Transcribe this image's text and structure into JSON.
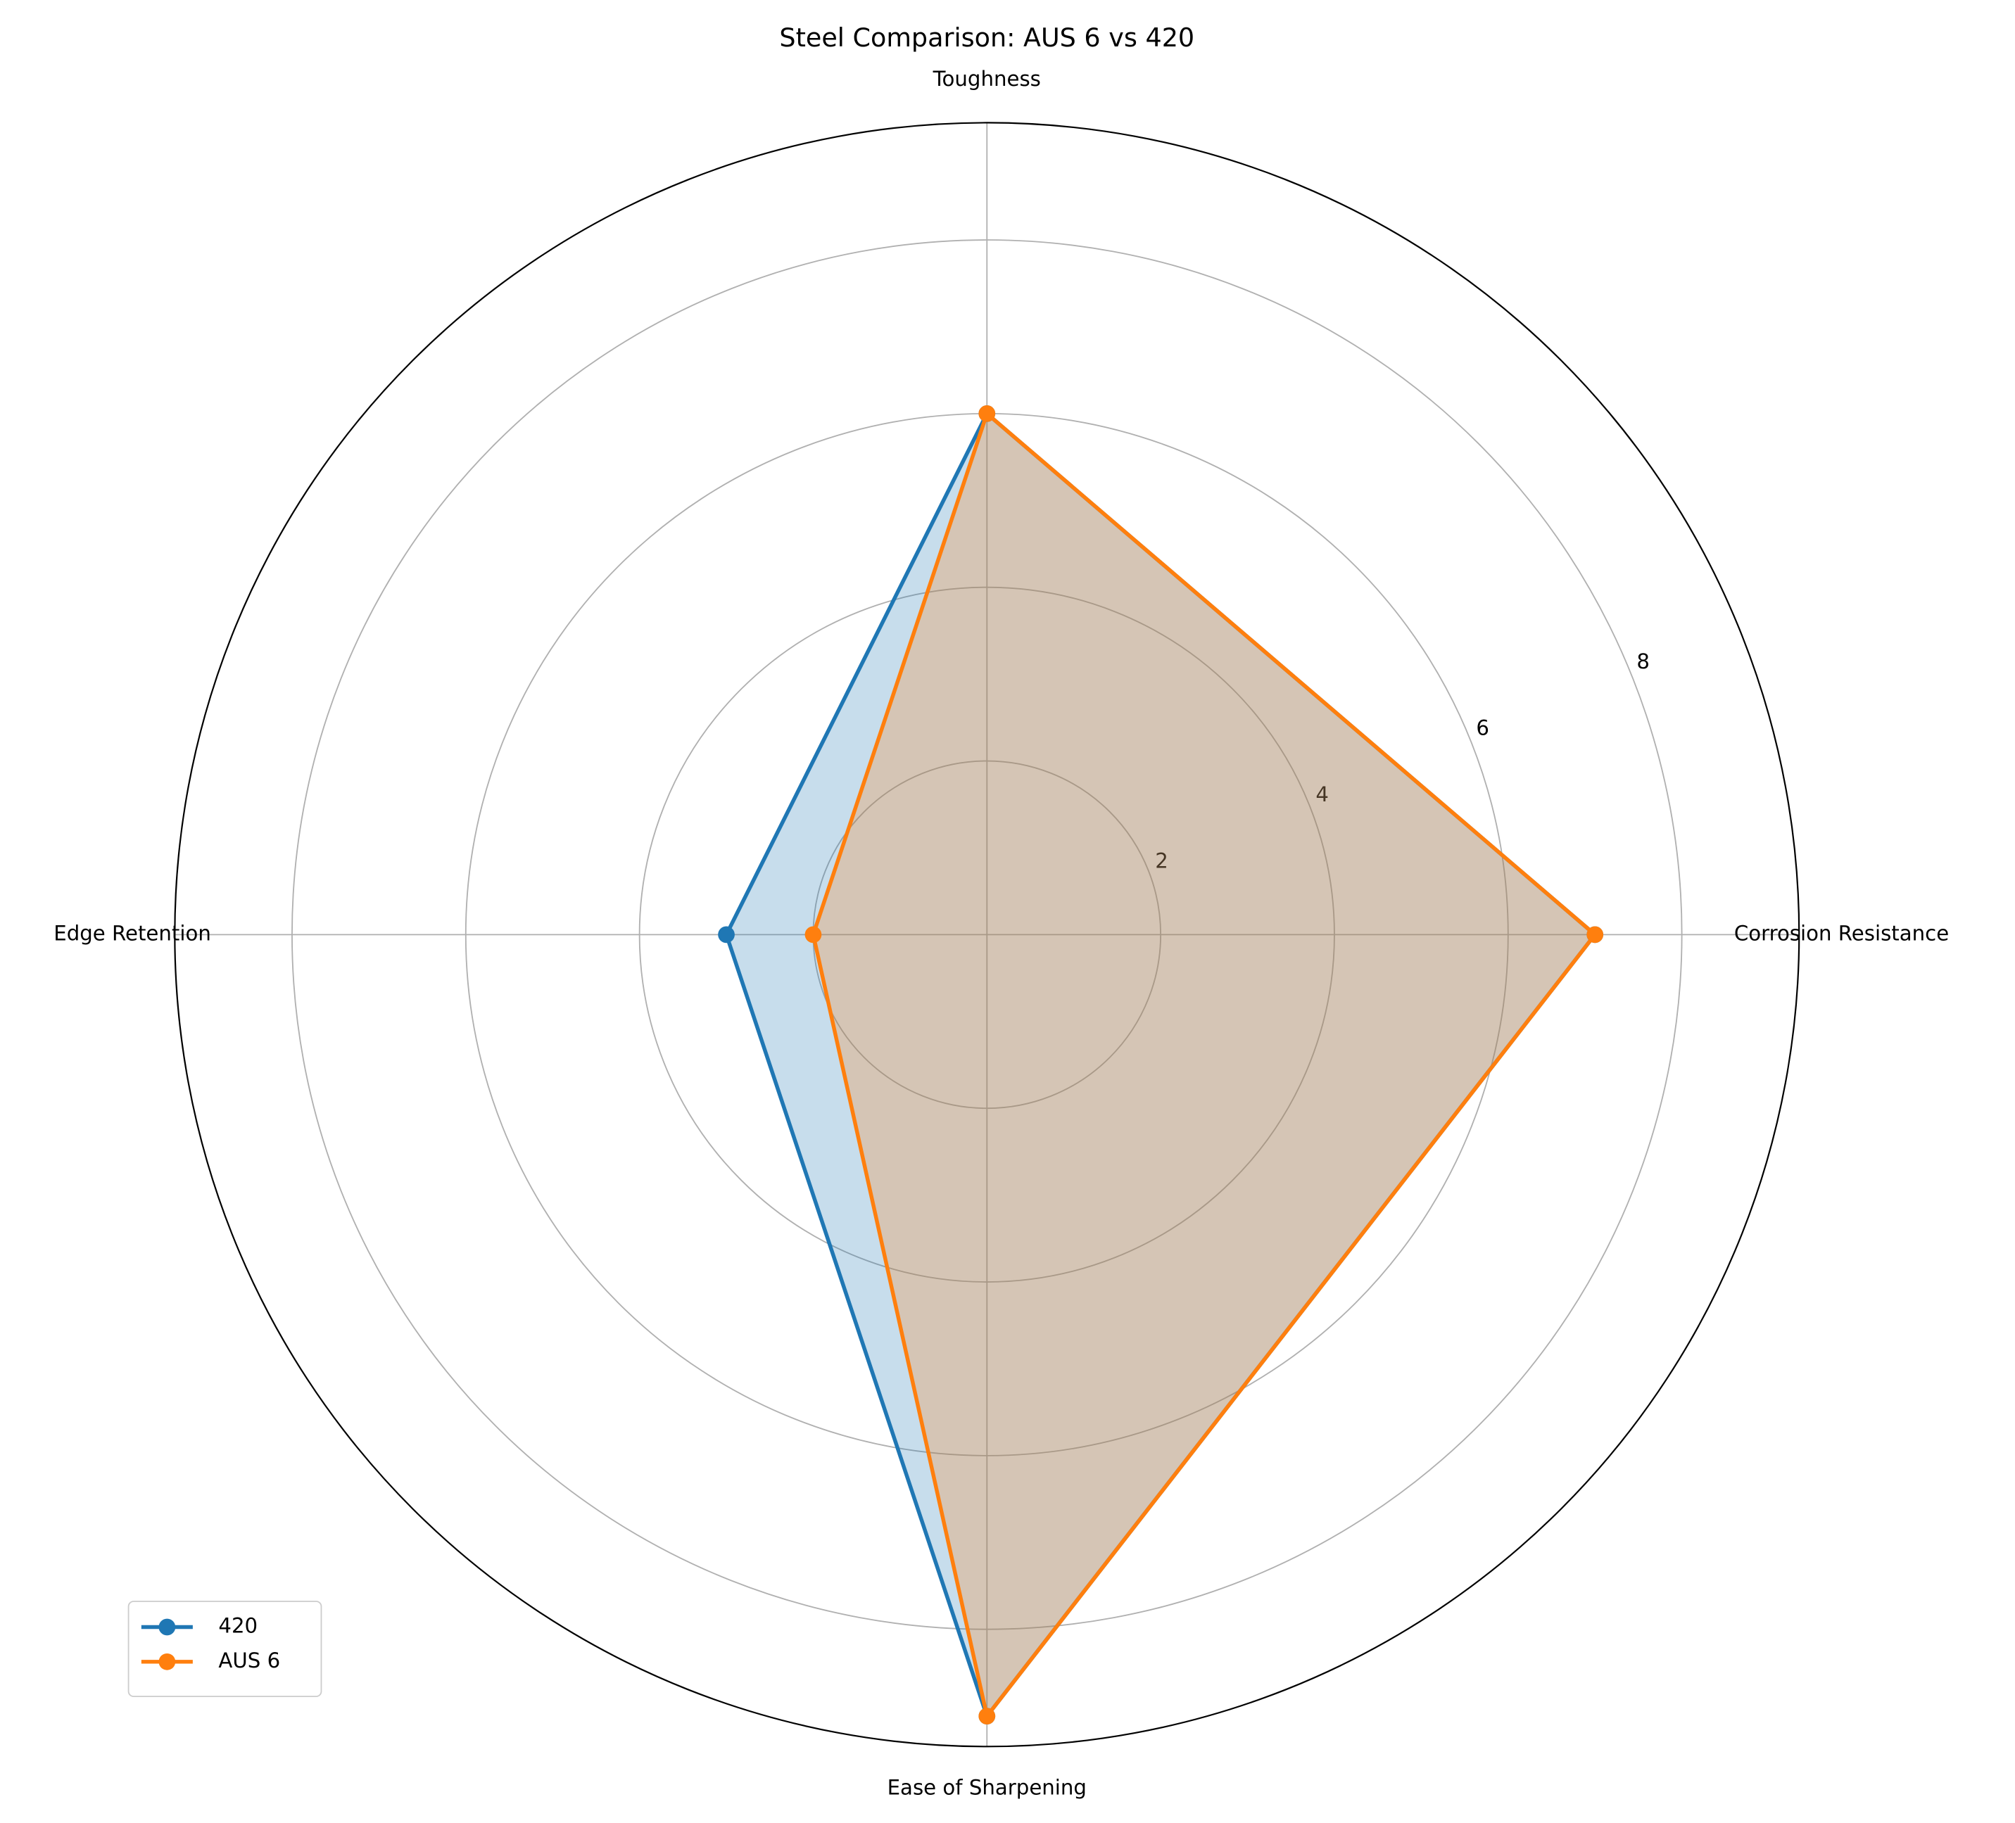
{
  "chart_data": {
    "type": "radar",
    "title": "Steel Comparison: AUS 6 vs 420",
    "categories": [
      "Corrosion Resistance",
      "Toughness",
      "Edge Retention",
      "Ease of Sharpening"
    ],
    "series": [
      {
        "name": "420",
        "color": "#1f77b4",
        "values": [
          7,
          6,
          3,
          9
        ]
      },
      {
        "name": "AUS 6",
        "color": "#ff7f0e",
        "values": [
          7,
          6,
          2,
          9
        ]
      }
    ],
    "ylim": [
      0,
      9.35
    ],
    "yticks": [
      2,
      4,
      6,
      8
    ],
    "grid": true,
    "legend": "lower left"
  }
}
